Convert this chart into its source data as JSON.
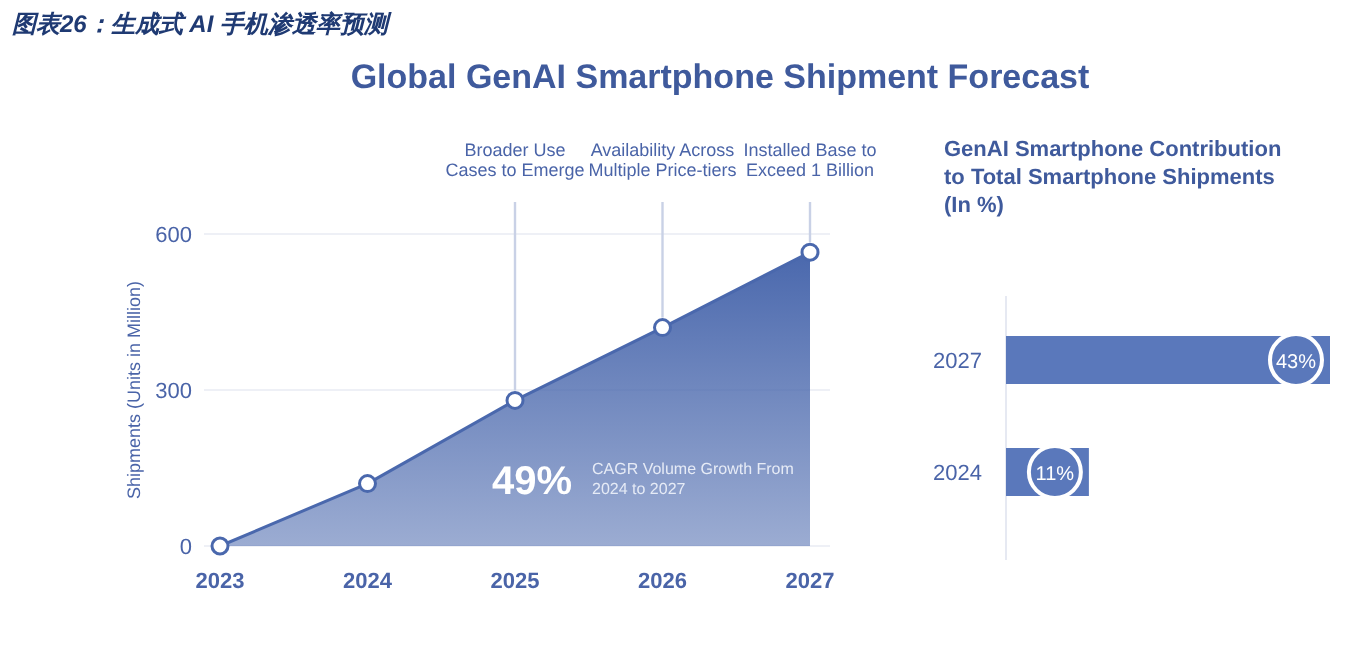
{
  "chart_data": [
    {
      "type": "area",
      "title": "Global GenAI Smartphone Shipment Forecast",
      "ylabel": "Shipments (Units in Million)",
      "categories": [
        "2023",
        "2024",
        "2025",
        "2026",
        "2027"
      ],
      "values": [
        0,
        120,
        280,
        420,
        565
      ],
      "color": "#4a68ad",
      "ylim": [
        0,
        600
      ],
      "yticks": [
        0,
        300,
        600
      ],
      "grid": "y",
      "marker": "circle",
      "annotations": [
        "图表26：生成式 AI 手机渗透率预测",
        {
          "text": "Broader Use Cases to Emerge",
          "x": "2025",
          "y": 280
        },
        {
          "text": "Availability Across Multiple Price-tiers",
          "x": "2026",
          "y": 420
        },
        {
          "text": "Installed Base to Exceed 1 Billion",
          "x": "2027",
          "y": 565
        },
        "49%",
        "CAGR Volume Growth From 2024 to 2027"
      ]
    },
    {
      "type": "bar",
      "orientation": "horizontal",
      "title": "GenAI Smartphone Contribution to Total Smartphone Shipments (In %)",
      "categories": [
        "2027",
        "2024"
      ],
      "values": [
        43,
        11
      ],
      "value_labels": [
        "43%",
        "11%"
      ],
      "color": "#5a78bb"
    }
  ]
}
